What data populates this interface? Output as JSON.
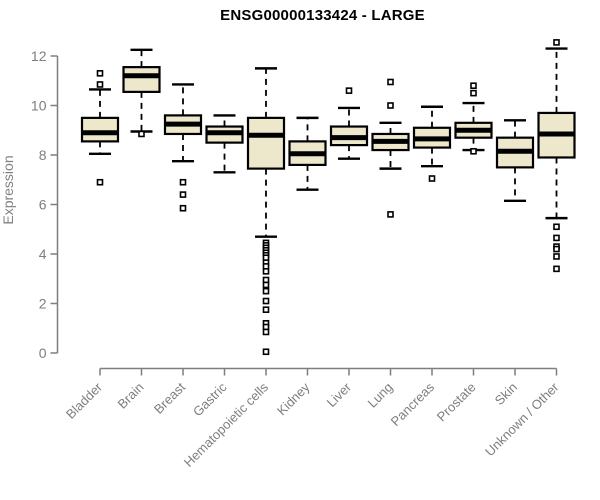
{
  "chart_data": {
    "type": "boxplot",
    "title": "ENSG00000133424 - LARGE",
    "ylabel": "Expression",
    "xlabel": "",
    "ylim": [
      0,
      12.6
    ],
    "yticks": [
      0,
      2,
      4,
      6,
      8,
      10,
      12
    ],
    "grid": false,
    "legend": "none",
    "colors": {
      "box_fill": "#EDE8CC",
      "box_border": "#000000",
      "median": "#000000",
      "whisker": "#000000",
      "outlier": "#000000",
      "axis": "#7e7e7e",
      "title": "#000000",
      "background": "#ffffff"
    },
    "categories": [
      "Bladder",
      "Brain",
      "Breast",
      "Gastric",
      "Hematopoietic cells",
      "Kidney",
      "Liver",
      "Lung",
      "Pancreas",
      "Prostate",
      "Skin",
      "Unknown / Other"
    ],
    "boxes": [
      {
        "category": "Bladder",
        "whisker_low": 8.05,
        "q1": 8.55,
        "median": 8.9,
        "q3": 9.5,
        "whisker_high": 10.65,
        "outliers": [
          11.3,
          10.85,
          6.9
        ]
      },
      {
        "category": "Brain",
        "whisker_low": 8.95,
        "q1": 10.55,
        "median": 11.2,
        "q3": 11.55,
        "whisker_high": 12.25,
        "outliers": [
          8.85
        ]
      },
      {
        "category": "Breast",
        "whisker_low": 7.75,
        "q1": 8.85,
        "median": 9.25,
        "q3": 9.6,
        "whisker_high": 10.85,
        "outliers": [
          6.9,
          6.4,
          5.85
        ]
      },
      {
        "category": "Gastric",
        "whisker_low": 7.3,
        "q1": 8.5,
        "median": 8.9,
        "q3": 9.15,
        "whisker_high": 9.6,
        "outliers": []
      },
      {
        "category": "Hematopoietic cells",
        "whisker_low": 4.7,
        "q1": 7.45,
        "median": 8.8,
        "q3": 9.5,
        "whisker_high": 11.5,
        "outliers": [
          4.45,
          4.35,
          4.25,
          4.15,
          4.05,
          3.95,
          3.85,
          3.65,
          3.5,
          3.3,
          2.95,
          2.75,
          2.5,
          2.1,
          1.75,
          1.2,
          1.05,
          0.85,
          0.05
        ]
      },
      {
        "category": "Kidney",
        "whisker_low": 6.6,
        "q1": 7.6,
        "median": 8.05,
        "q3": 8.55,
        "whisker_high": 9.5,
        "outliers": []
      },
      {
        "category": "Liver",
        "whisker_low": 7.85,
        "q1": 8.4,
        "median": 8.7,
        "q3": 9.15,
        "whisker_high": 9.9,
        "outliers": [
          10.6
        ]
      },
      {
        "category": "Lung",
        "whisker_low": 7.45,
        "q1": 8.2,
        "median": 8.55,
        "q3": 8.85,
        "whisker_high": 9.3,
        "outliers": [
          10.95,
          10.0,
          5.6
        ]
      },
      {
        "category": "Pancreas",
        "whisker_low": 7.55,
        "q1": 8.3,
        "median": 8.65,
        "q3": 9.1,
        "whisker_high": 9.95,
        "outliers": [
          7.05
        ]
      },
      {
        "category": "Prostate",
        "whisker_low": 8.2,
        "q1": 8.7,
        "median": 9.0,
        "q3": 9.3,
        "whisker_high": 10.1,
        "outliers": [
          10.8,
          10.5,
          8.15
        ]
      },
      {
        "category": "Skin",
        "whisker_low": 6.15,
        "q1": 7.5,
        "median": 8.15,
        "q3": 8.7,
        "whisker_high": 9.4,
        "outliers": []
      },
      {
        "category": "Unknown / Other",
        "whisker_low": 5.45,
        "q1": 7.9,
        "median": 8.85,
        "q3": 9.7,
        "whisker_high": 12.3,
        "outliers": [
          12.55,
          5.1,
          4.65,
          4.3,
          4.2,
          3.9,
          3.4
        ]
      }
    ]
  }
}
